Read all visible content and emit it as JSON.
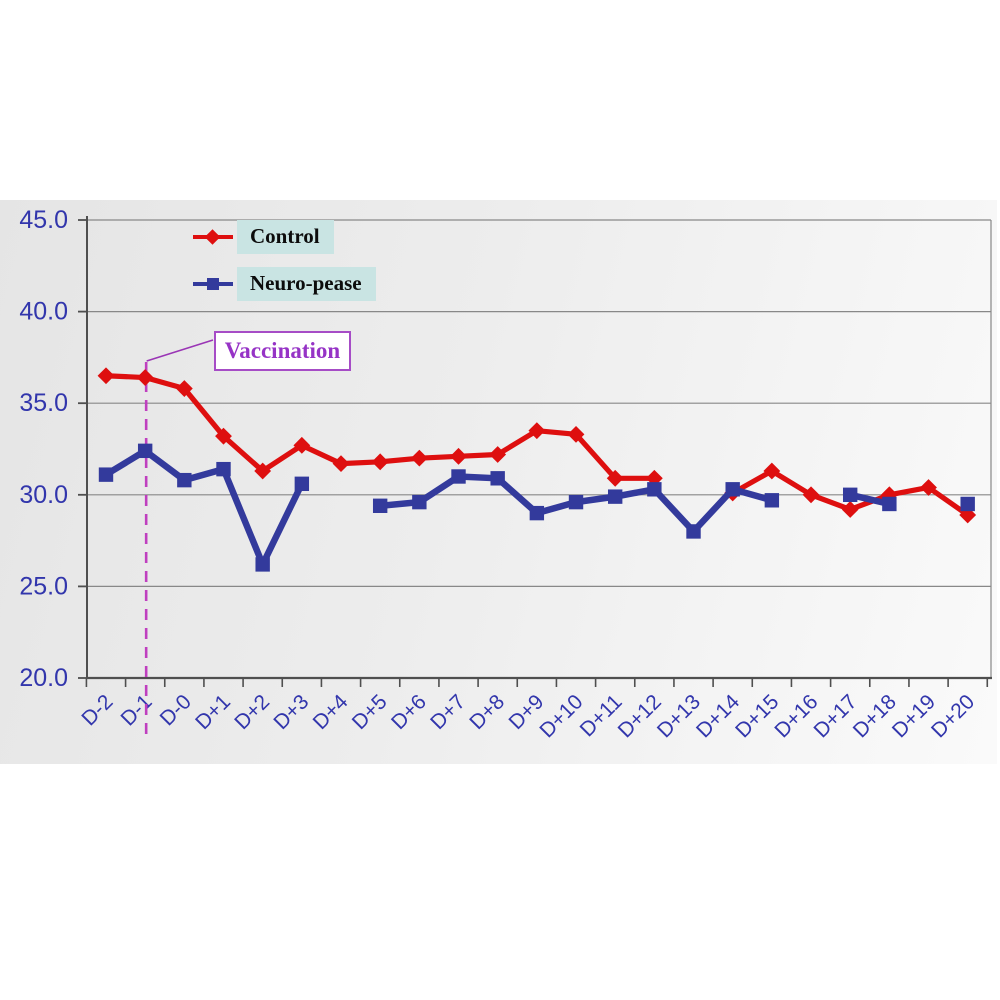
{
  "colors": {
    "control": "#de0f0f",
    "neuro_pease": "#333a9c",
    "axis_text": "#3236ac",
    "grid": "#888888",
    "axis_line": "#4f4f4f",
    "dashed_line": "#bf3fbf",
    "callout_line": "#9a35b5",
    "annotation_text": "#9633c6",
    "annotation_border": "#a64cc6",
    "legend_bg": "#c9e4e3"
  },
  "legend": {
    "items": [
      {
        "label": "Control",
        "marker": "diamond",
        "color": "#de0f0f"
      },
      {
        "label": "Neuro-pease",
        "marker": "square",
        "color": "#333a9c"
      }
    ]
  },
  "annotation": {
    "label": "Vaccination",
    "target_category": "D-1"
  },
  "chart_data": {
    "type": "line",
    "title": "",
    "xlabel": "",
    "ylabel": "",
    "categories": [
      "D-2",
      "D-1",
      "D-0",
      "D+1",
      "D+2",
      "D+3",
      "D+4",
      "D+5",
      "D+6",
      "D+7",
      "D+8",
      "D+9",
      "D+10",
      "D+11",
      "D+12",
      "D+13",
      "D+14",
      "D+15",
      "D+16",
      "D+17",
      "D+18",
      "D+19",
      "D+20"
    ],
    "series": [
      {
        "name": "Control",
        "marker": "diamond",
        "color": "#de0f0f",
        "values": [
          36.5,
          36.4,
          35.8,
          33.2,
          31.3,
          32.7,
          31.7,
          31.8,
          32.0,
          32.1,
          32.2,
          33.5,
          33.3,
          30.9,
          30.9,
          null,
          30.1,
          31.3,
          30.0,
          29.2,
          30.0,
          30.4,
          28.9
        ]
      },
      {
        "name": "Neuro-pease",
        "marker": "square",
        "color": "#333a9c",
        "values": [
          31.1,
          32.4,
          30.8,
          31.4,
          26.2,
          30.6,
          null,
          29.4,
          29.6,
          31.0,
          30.9,
          29.0,
          29.6,
          29.9,
          30.3,
          28.0,
          30.3,
          29.7,
          null,
          30.0,
          29.5,
          null,
          29.5
        ]
      }
    ],
    "ylim": [
      20.0,
      45.0
    ],
    "yticks": [
      45.0,
      40.0,
      35.0,
      30.0,
      25.0,
      20.0
    ],
    "ytick_labels": [
      "45.0",
      "40.0",
      "35.0",
      "30.0",
      "25.0",
      "20.0"
    ],
    "grid": true,
    "legend_position": "top-left-inside",
    "annotations": [
      {
        "text": "Vaccination",
        "x_category": "D-1",
        "style": "dashed-vertical-line-with-box"
      }
    ]
  }
}
